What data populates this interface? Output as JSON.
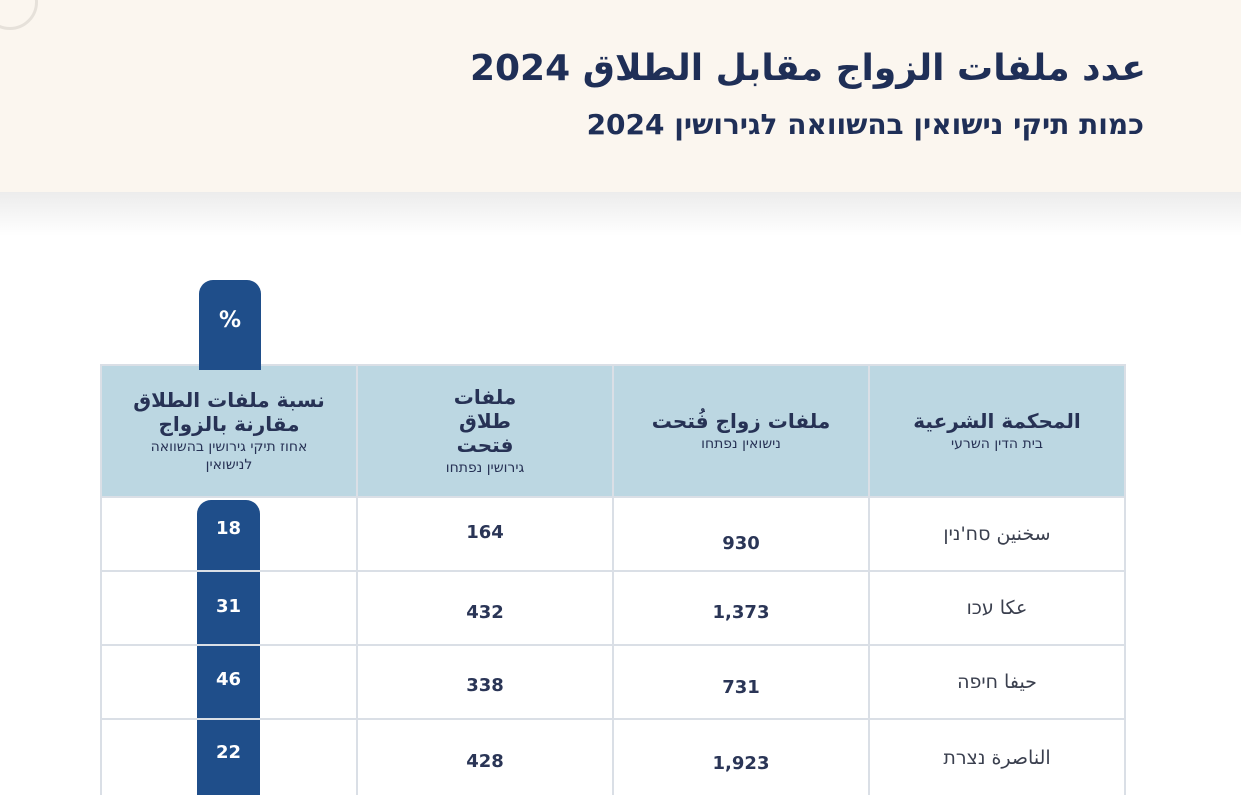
{
  "header": {
    "title_arabic": "عدد ملفات الزواج مقابل الطلاق 2024",
    "title_hebrew": "כמות תיקי נישואין בהשוואה לגירושין 2024"
  },
  "table": {
    "percent_symbol": "%",
    "columns": [
      {
        "main": "المحكمة الشرعية",
        "sub": "בית הדין השרעי"
      },
      {
        "main": "ملفات زواج فُتحت",
        "sub": "נישואין נפתחו"
      },
      {
        "main": "ملفات طلاق فتحت",
        "sub": "גירושין נפתחו"
      },
      {
        "main": "نسبة ملفات الطلاق مقارنة بالزواج",
        "sub": "אחוז תיקי גירושין בהשוואה לנישואין"
      }
    ],
    "rows": [
      {
        "court": "سخنين סח'נין",
        "marriages": "930",
        "divorces": "164",
        "percent": "18"
      },
      {
        "court": "عكا עכו",
        "marriages": "1,373",
        "divorces": "432",
        "percent": "31"
      },
      {
        "court": "حيفا חיפה",
        "marriages": "731",
        "divorces": "338",
        "percent": "46"
      },
      {
        "court": "الناصرة נצרת",
        "marriages": "1,923",
        "divorces": "428",
        "percent": "22"
      }
    ]
  }
}
